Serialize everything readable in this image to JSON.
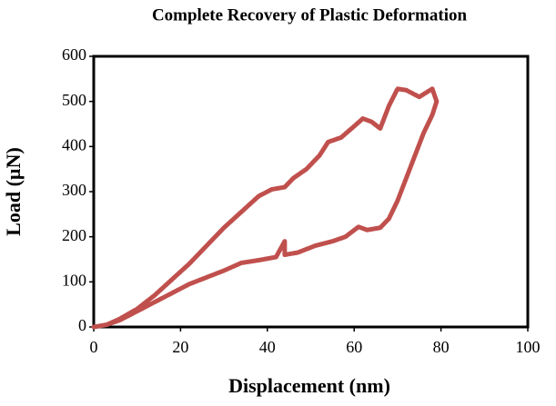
{
  "chart_data": {
    "type": "line",
    "title": "Complete  Recovery of Plastic Deformation",
    "x_label": "Displacement (nm)",
    "y_label": "Load (µN)",
    "series": [
      {
        "name": "Load",
        "color": "#c0504d",
        "x": [
          0,
          3,
          6,
          10,
          14,
          18,
          22,
          26,
          30,
          34,
          38,
          41,
          44,
          46,
          49,
          52,
          54,
          57,
          60,
          62,
          64,
          66,
          68,
          70,
          72,
          75,
          78,
          79,
          78,
          76,
          74,
          72,
          70,
          68,
          66,
          63,
          61,
          58,
          55,
          51,
          47,
          44,
          44,
          42,
          38,
          34,
          30,
          26,
          22,
          18,
          14,
          10,
          6,
          3,
          0
        ],
        "values": [
          0,
          5,
          18,
          40,
          70,
          105,
          140,
          180,
          220,
          255,
          290,
          305,
          310,
          330,
          350,
          380,
          410,
          420,
          445,
          462,
          455,
          440,
          490,
          528,
          525,
          510,
          528,
          500,
          470,
          430,
          380,
          330,
          280,
          240,
          220,
          215,
          222,
          200,
          190,
          180,
          165,
          160,
          190,
          155,
          148,
          142,
          125,
          110,
          95,
          75,
          55,
          35,
          15,
          5,
          0
        ]
      }
    ],
    "xlim": [
      0,
      100
    ],
    "xticks": [
      0,
      20,
      40,
      60,
      80,
      100
    ],
    "ylim": [
      0,
      600
    ],
    "yticks": [
      0,
      100,
      200,
      300,
      400,
      500,
      600
    ],
    "grid": false
  }
}
